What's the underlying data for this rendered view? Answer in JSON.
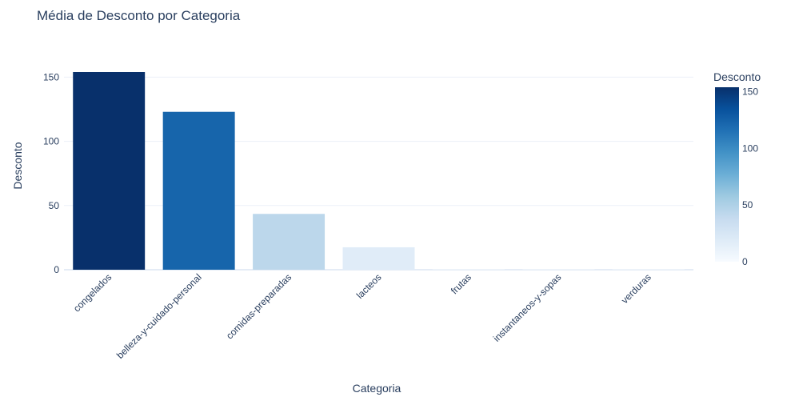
{
  "chart_data": {
    "type": "bar",
    "title": "Média de Desconto por Categoria",
    "xlabel": "Categoria",
    "ylabel": "Desconto",
    "categories": [
      "congelados",
      "belleza-y-cuidado-personal",
      "comidas-preparadas",
      "lacteos",
      "frutas",
      "instantaneos-y-sopas",
      "verduras"
    ],
    "values": [
      154,
      123,
      43.5,
      17.5,
      0.3,
      0.3,
      0.3
    ],
    "ylim": [
      0,
      154
    ],
    "yticks": [
      0,
      50,
      100,
      150
    ],
    "grid": true,
    "colorscale": {
      "name": "Blues",
      "title": "Desconto",
      "range": [
        0,
        154
      ],
      "ticks": [
        0,
        50,
        100,
        150
      ],
      "colors": [
        "#f7fbff",
        "#deebf7",
        "#c6dbef",
        "#9ecae1",
        "#6baed6",
        "#4292c6",
        "#2171b5",
        "#08519c",
        "#08306b"
      ]
    }
  }
}
